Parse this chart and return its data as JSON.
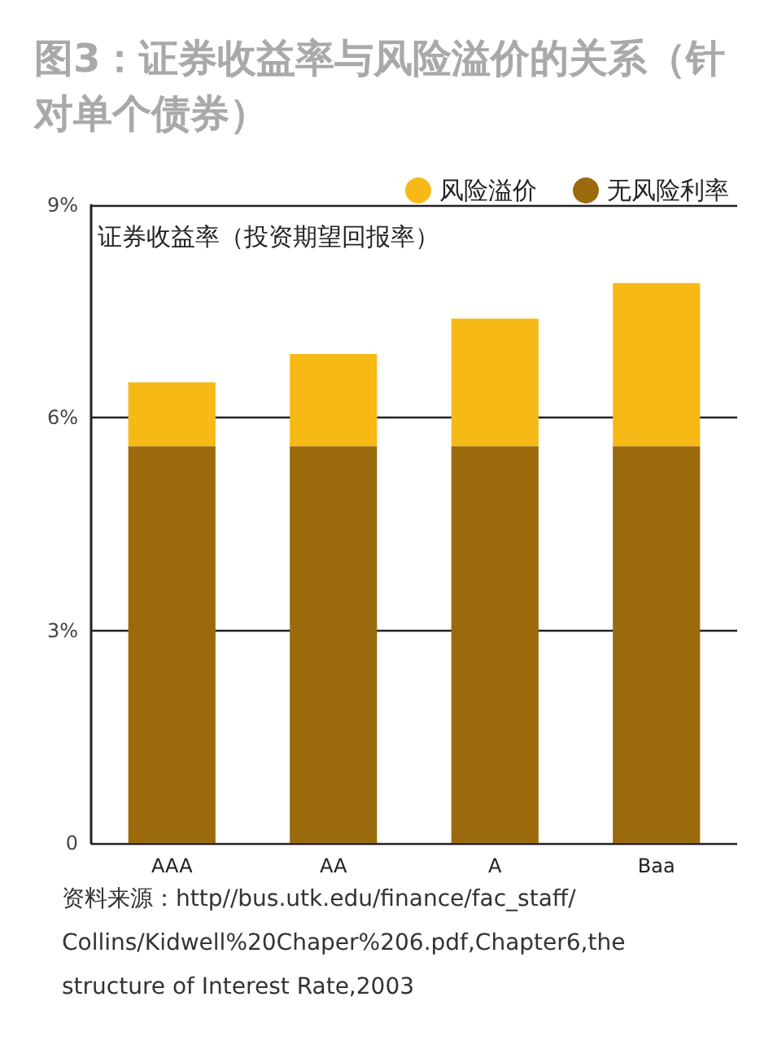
{
  "chart_data": {
    "type": "bar",
    "title": "图3：证券收益率与风险溢价的关系（针对单个债券）",
    "ylabel": "证券收益率（投资期望回报率）",
    "categories": [
      "AAA",
      "AA",
      "A",
      "Baa"
    ],
    "stacked": true,
    "series": [
      {
        "name": "无风险利率",
        "color": "#9a6a0c",
        "values": [
          5.6,
          5.6,
          5.6,
          5.6
        ]
      },
      {
        "name": "风险溢价",
        "color": "#f6b916",
        "values": [
          0.9,
          1.3,
          1.8,
          2.3
        ]
      }
    ],
    "ylim": [
      0,
      9
    ],
    "yticks": [
      0,
      {
        "value": 3,
        "label": "3%"
      },
      {
        "value": 6,
        "label": "6%"
      },
      {
        "value": 9,
        "label": "9%"
      }
    ],
    "grid": "y",
    "legend": "top right",
    "annotations": [
      "资料来源：http//bus.utk.edu/finance/fac_staff/Collins/Kidwell%20Chaper%206.pdf,Chapter6,the structure of Interest Rate,2003"
    ]
  }
}
